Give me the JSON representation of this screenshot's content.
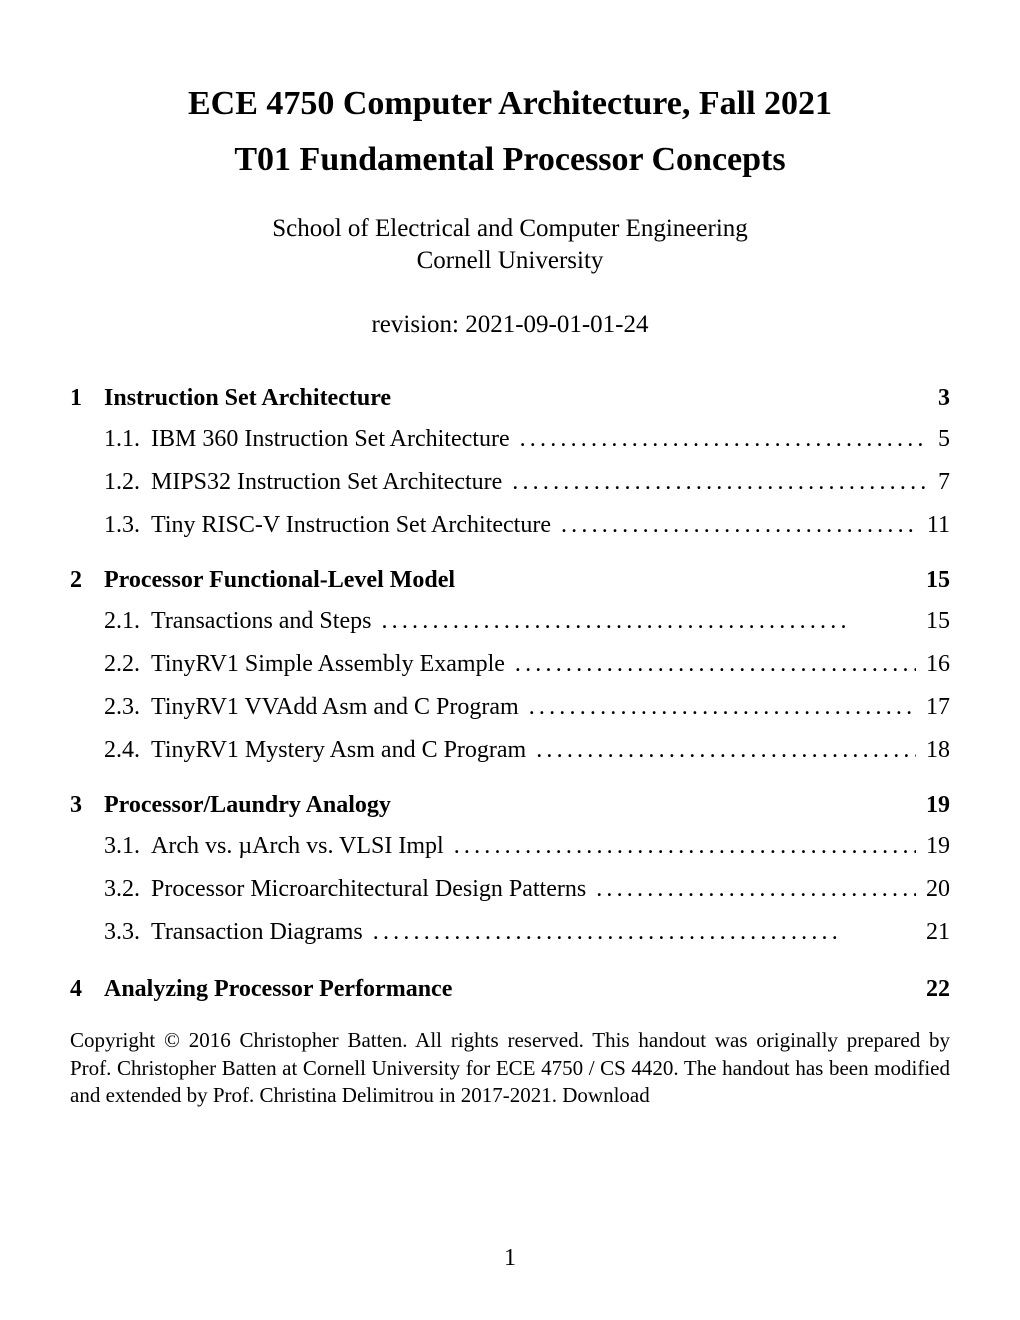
{
  "header": {
    "title_line1": "ECE 4750 Computer Architecture, Fall 2021",
    "title_line2": "T01 Fundamental Processor Concepts",
    "school": "School of Electrical and Computer Engineering",
    "university": "Cornell University",
    "revision": "revision: 2021-09-01-01-24"
  },
  "toc": {
    "sections": [
      {
        "num": "1",
        "title": "Instruction Set Architecture",
        "page": "3",
        "subs": [
          {
            "num": "1.1.",
            "title": "IBM 360 Instruction Set Architecture",
            "page": "5"
          },
          {
            "num": "1.2.",
            "title": "MIPS32 Instruction Set Architecture",
            "page": "7"
          },
          {
            "num": "1.3.",
            "title": "Tiny RISC-V Instruction Set Architecture",
            "page": "11"
          }
        ]
      },
      {
        "num": "2",
        "title": "Processor Functional-Level Model",
        "page": "15",
        "subs": [
          {
            "num": "2.1.",
            "title": "Transactions and Steps",
            "page": "15"
          },
          {
            "num": "2.2.",
            "title": "TinyRV1 Simple Assembly Example",
            "page": "16"
          },
          {
            "num": "2.3.",
            "title": "TinyRV1 VVAdd Asm and C Program",
            "page": "17"
          },
          {
            "num": "2.4.",
            "title": "TinyRV1 Mystery Asm and C Program",
            "page": "18"
          }
        ]
      },
      {
        "num": "3",
        "title": "Processor/Laundry Analogy",
        "page": "19",
        "subs": [
          {
            "num": "3.1.",
            "title": "Arch vs. µArch vs. VLSI Impl",
            "page": "19"
          },
          {
            "num": "3.2.",
            "title": "Processor Microarchitectural Design Patterns",
            "page": "20"
          },
          {
            "num": "3.3.",
            "title": "Transaction Diagrams",
            "page": "21"
          }
        ]
      },
      {
        "num": "4",
        "title": "Analyzing Processor Performance",
        "page": "22",
        "subs": []
      }
    ]
  },
  "dots": "..............................................",
  "copyright": "Copyright © 2016 Christopher Batten. All rights reserved. This handout was originally prepared by Prof. Christopher Batten at Cornell University for ECE 4750 / CS 4420. The handout has been modified and extended by Prof. Christina Delimitrou in 2017-2021. Download",
  "page_number": "1"
}
